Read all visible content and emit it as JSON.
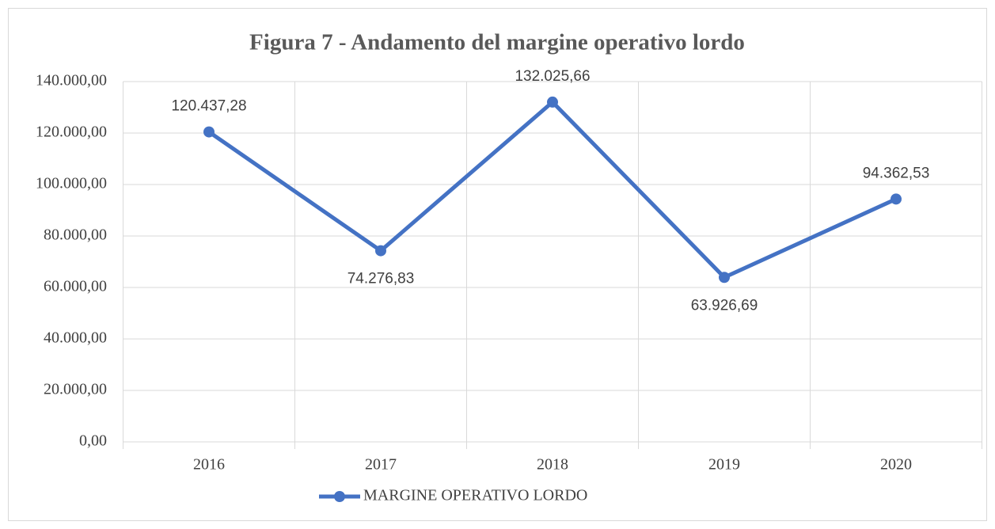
{
  "chart_data": {
    "type": "line",
    "title": "Figura 7 - Andamento del margine operativo lordo",
    "categories": [
      "2016",
      "2017",
      "2018",
      "2019",
      "2020"
    ],
    "series": [
      {
        "name": "MARGINE OPERATIVO LORDO",
        "color": "#4472c4",
        "values": [
          120437.28,
          74276.83,
          132025.66,
          63926.69,
          94362.53
        ],
        "value_labels": [
          "120.437,28",
          "74.276,83",
          "132.025,66",
          "63.926,69",
          "94.362,53"
        ]
      }
    ],
    "ylim": [
      0,
      140000
    ],
    "yticks": [
      {
        "value": 0,
        "label": "0,00"
      },
      {
        "value": 20000,
        "label": "20.000,00"
      },
      {
        "value": 40000,
        "label": "40.000,00"
      },
      {
        "value": 60000,
        "label": "60.000,00"
      },
      {
        "value": 80000,
        "label": "80.000,00"
      },
      {
        "value": 100000,
        "label": "100.000,00"
      },
      {
        "value": 120000,
        "label": "120.000,00"
      },
      {
        "value": 140000,
        "label": "140.000,00"
      }
    ],
    "grid": true,
    "legend": "bottom"
  }
}
